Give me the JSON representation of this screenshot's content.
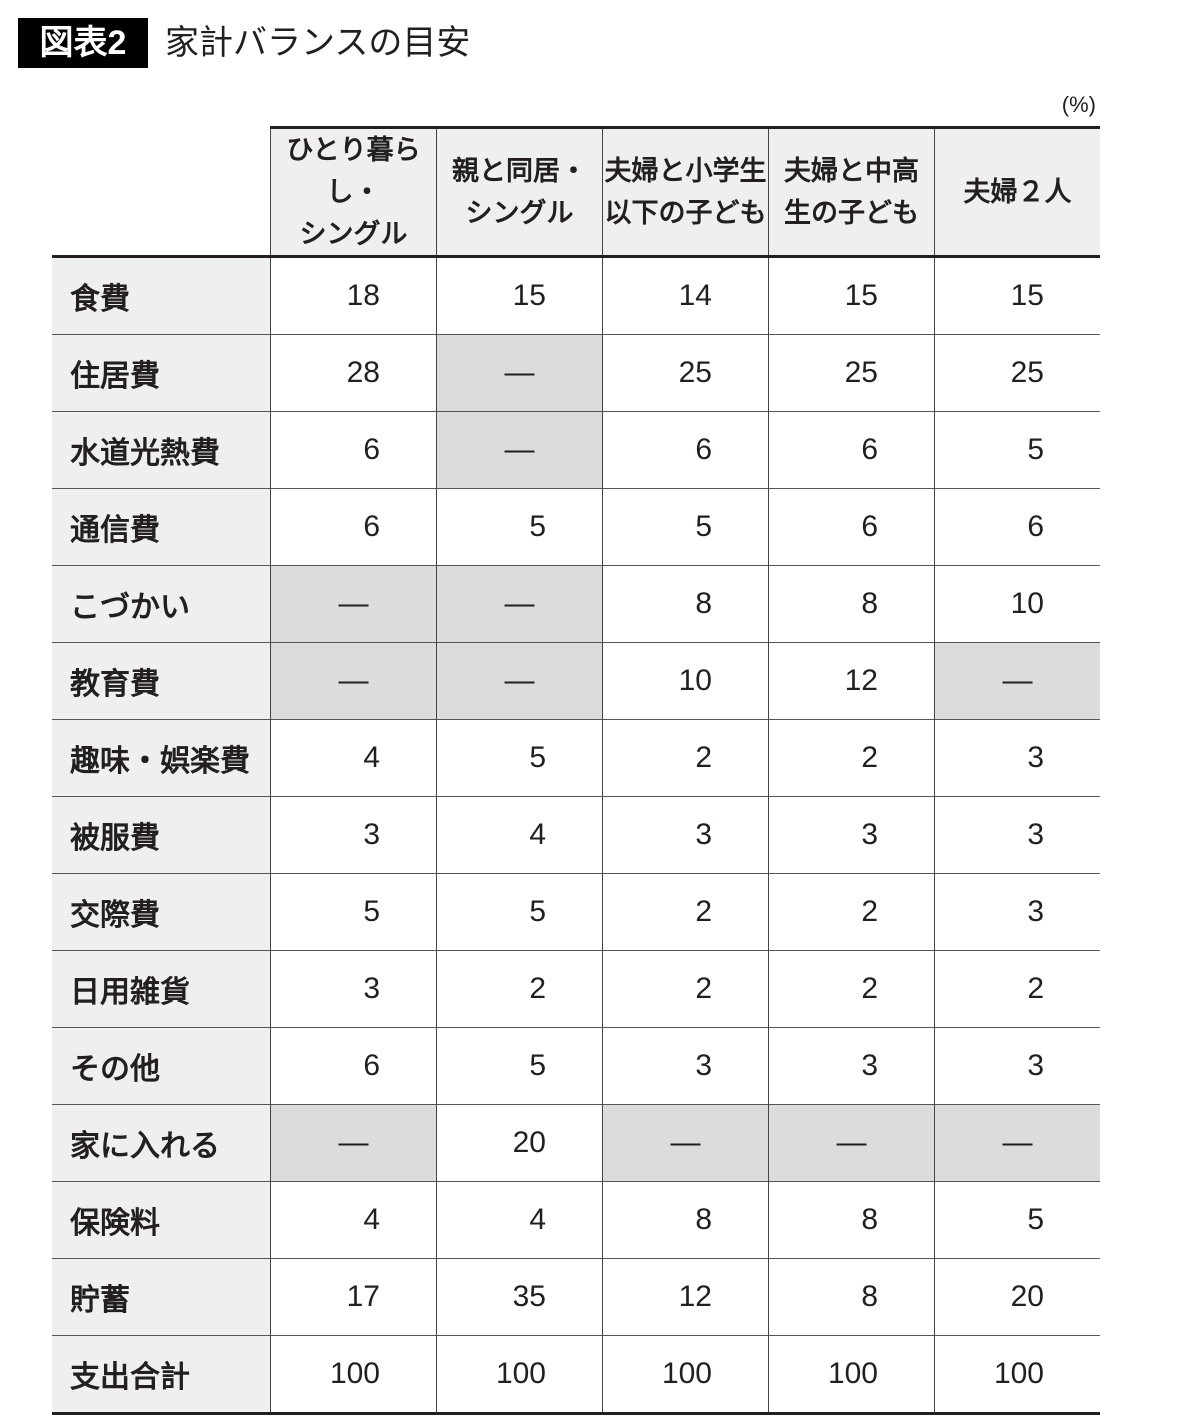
{
  "badge": "図表2",
  "title": "家計バランスの目安",
  "unit": "(%)",
  "chart_data": {
    "type": "table",
    "columns": [
      "ひとり暮らし・\nシングル",
      "親と同居・\nシングル",
      "夫婦と小学生\n以下の子ども",
      "夫婦と中高\n生の子ども",
      "夫婦２人"
    ],
    "rows": [
      {
        "label": "食費",
        "values": [
          "18",
          "15",
          "14",
          "15",
          "15"
        ]
      },
      {
        "label": "住居費",
        "values": [
          "28",
          "—",
          "25",
          "25",
          "25"
        ]
      },
      {
        "label": "水道光熱費",
        "values": [
          "6",
          "—",
          "6",
          "6",
          "5"
        ]
      },
      {
        "label": "通信費",
        "values": [
          "6",
          "5",
          "5",
          "6",
          "6"
        ]
      },
      {
        "label": "こづかい",
        "values": [
          "—",
          "—",
          "8",
          "8",
          "10"
        ]
      },
      {
        "label": "教育費",
        "values": [
          "—",
          "—",
          "10",
          "12",
          "—"
        ]
      },
      {
        "label": "趣味・娯楽費",
        "values": [
          "4",
          "5",
          "2",
          "2",
          "3"
        ]
      },
      {
        "label": "被服費",
        "values": [
          "3",
          "4",
          "3",
          "3",
          "3"
        ]
      },
      {
        "label": "交際費",
        "values": [
          "5",
          "5",
          "2",
          "2",
          "3"
        ]
      },
      {
        "label": "日用雑貨",
        "values": [
          "3",
          "2",
          "2",
          "2",
          "2"
        ]
      },
      {
        "label": "その他",
        "values": [
          "6",
          "5",
          "3",
          "3",
          "3"
        ]
      },
      {
        "label": "家に入れる",
        "values": [
          "—",
          "20",
          "—",
          "—",
          "—"
        ]
      },
      {
        "label": "保険料",
        "values": [
          "4",
          "4",
          "8",
          "8",
          "5"
        ]
      },
      {
        "label": "貯蓄",
        "values": [
          "17",
          "35",
          "12",
          "8",
          "20"
        ]
      },
      {
        "label": "支出合計",
        "values": [
          "100",
          "100",
          "100",
          "100",
          "100"
        ]
      }
    ],
    "colors": {
      "header_bg": "#efefef",
      "dash_bg": "#dcdcdc",
      "badge_bg": "#000000"
    }
  }
}
